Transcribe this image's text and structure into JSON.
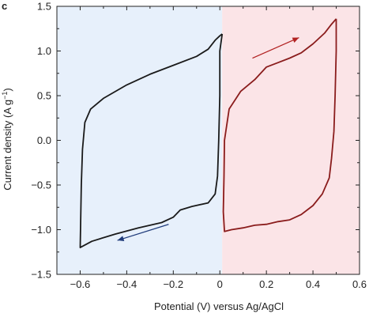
{
  "chart_data": {
    "type": "line",
    "panel_label": "c",
    "xlabel": "Potential (V) versus Ag/AgCl",
    "ylabel": "Current density (A g",
    "ylabel_superscript": "−1",
    "ylabel_close": ")",
    "xlim": [
      -0.7,
      0.6
    ],
    "ylim": [
      -1.5,
      1.5
    ],
    "x_ticks": [
      -0.6,
      -0.4,
      -0.2,
      0.0,
      0.2,
      0.4,
      0.6
    ],
    "x_tick_labels": [
      "−0.6",
      "−0.4",
      "−0.2",
      "0",
      "0.2",
      "0.4",
      "0.6"
    ],
    "y_ticks": [
      -1.5,
      -1.0,
      -0.5,
      0.0,
      0.5,
      1.0,
      1.5
    ],
    "y_tick_labels": [
      "−1.5",
      "−1.0",
      "−0.5",
      "0.0",
      "0.5",
      "1.0",
      "1.5"
    ],
    "grid": false,
    "regions": [
      {
        "x_range": [
          -0.7,
          0.01
        ],
        "color": "#e7f0fb"
      },
      {
        "x_range": [
          0.01,
          0.6
        ],
        "color": "#fbe4e7"
      }
    ],
    "series": [
      {
        "color": "#1a1a1a",
        "points": [
          [
            0.01,
            1.19
          ],
          [
            0.0,
            1.0
          ],
          [
            0.0,
            0.5
          ],
          [
            -0.005,
            0.0
          ],
          [
            -0.01,
            -0.4
          ],
          [
            -0.02,
            -0.6
          ],
          [
            -0.05,
            -0.7
          ],
          [
            -0.12,
            -0.74
          ],
          [
            -0.17,
            -0.78
          ],
          [
            -0.2,
            -0.86
          ],
          [
            -0.25,
            -0.92
          ],
          [
            -0.35,
            -0.98
          ],
          [
            -0.45,
            -1.05
          ],
          [
            -0.55,
            -1.13
          ],
          [
            -0.6,
            -1.2
          ],
          [
            -0.598,
            -0.9
          ],
          [
            -0.595,
            -0.5
          ],
          [
            -0.59,
            -0.1
          ],
          [
            -0.58,
            0.2
          ],
          [
            -0.555,
            0.35
          ],
          [
            -0.5,
            0.47
          ],
          [
            -0.4,
            0.62
          ],
          [
            -0.3,
            0.74
          ],
          [
            -0.2,
            0.84
          ],
          [
            -0.1,
            0.94
          ],
          [
            -0.05,
            1.02
          ],
          [
            -0.02,
            1.12
          ],
          [
            0.0,
            1.17
          ],
          [
            0.01,
            1.19
          ]
        ]
      },
      {
        "color": "#8a1c1c",
        "points": [
          [
            0.5,
            1.36
          ],
          [
            0.5,
            1.0
          ],
          [
            0.495,
            0.5
          ],
          [
            0.49,
            0.1
          ],
          [
            0.48,
            -0.2
          ],
          [
            0.47,
            -0.42
          ],
          [
            0.44,
            -0.6
          ],
          [
            0.4,
            -0.73
          ],
          [
            0.35,
            -0.83
          ],
          [
            0.3,
            -0.89
          ],
          [
            0.25,
            -0.91
          ],
          [
            0.2,
            -0.94
          ],
          [
            0.15,
            -0.95
          ],
          [
            0.1,
            -0.98
          ],
          [
            0.05,
            -1.0
          ],
          [
            0.02,
            -1.02
          ],
          [
            0.015,
            -0.8
          ],
          [
            0.018,
            -0.4
          ],
          [
            0.02,
            0.0
          ],
          [
            0.04,
            0.35
          ],
          [
            0.09,
            0.55
          ],
          [
            0.15,
            0.68
          ],
          [
            0.2,
            0.82
          ],
          [
            0.25,
            0.87
          ],
          [
            0.3,
            0.92
          ],
          [
            0.35,
            0.98
          ],
          [
            0.4,
            1.08
          ],
          [
            0.45,
            1.2
          ],
          [
            0.48,
            1.3
          ],
          [
            0.5,
            1.36
          ]
        ]
      }
    ],
    "arrows": [
      {
        "from": [
          0.14,
          0.92
        ],
        "to": [
          0.34,
          1.15
        ],
        "color": "#b22222"
      },
      {
        "from": [
          -0.22,
          -0.94
        ],
        "to": [
          -0.44,
          -1.12
        ],
        "color": "#1f3b7a"
      }
    ]
  }
}
